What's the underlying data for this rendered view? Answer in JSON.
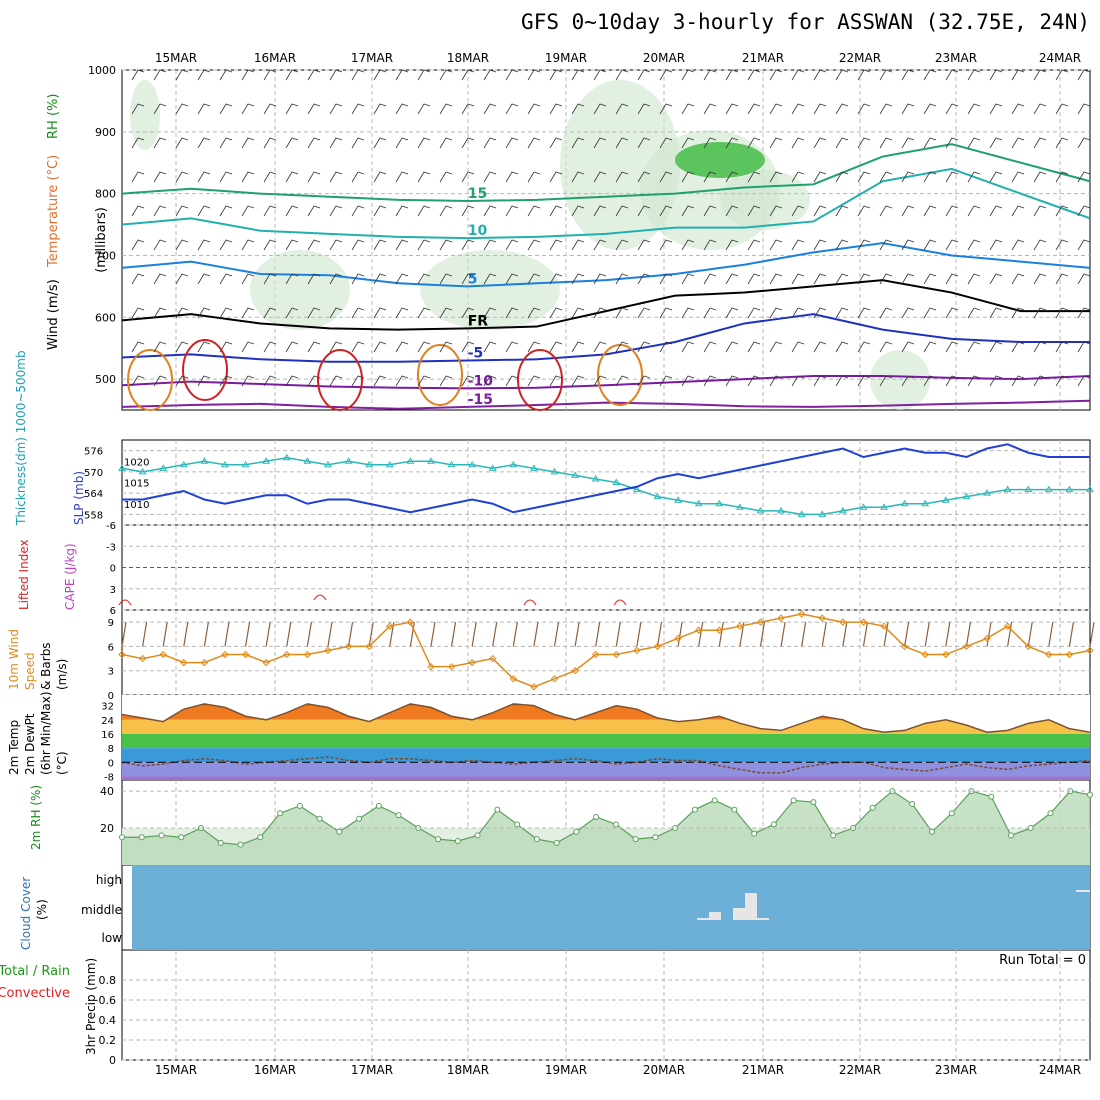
{
  "title": "GFS 0~10day 3-hourly for ASSWAN (32.75E, 24N)",
  "dates": [
    "15MAR",
    "16MAR",
    "17MAR",
    "18MAR",
    "19MAR",
    "20MAR",
    "21MAR",
    "22MAR",
    "23MAR",
    "24MAR"
  ],
  "run_total_text": "Run Total = 0",
  "colors": {
    "grid": "#b8b8b8",
    "frame": "#000",
    "slp": "#1f3fd6",
    "thickness": "#2ab7b7",
    "wind": "#e08a1a",
    "barb": "#8b6040",
    "temp": "#7a5230",
    "dewpt": "#7a4a2a",
    "rh": "#5aa05a",
    "cloud_bg": "#6baed6",
    "cloud_bar": "#e6e6e6",
    "li": "#e02020",
    "cape": "#c040c0"
  },
  "chart_data": [
    {
      "id": "profile",
      "type": "contour",
      "ylabel_parts": [
        {
          "text": "Wind (m/s)",
          "color": "#000"
        },
        {
          "text": "Temperature (°C)",
          "color": "#e07030"
        },
        {
          "text": "RH (%)",
          "color": "#1a8a1a"
        }
      ],
      "ylabel2": "(millibars)",
      "yticks": [
        500,
        600,
        700,
        800,
        900,
        1000
      ],
      "ylim": [
        450,
        1000
      ],
      "isotherms": [
        {
          "label": "-15",
          "color": "#8020a0",
          "y": [
            455,
            458,
            460,
            455,
            452,
            455,
            458,
            462,
            460,
            456,
            455,
            457,
            460,
            462,
            465
          ]
        },
        {
          "label": "-10",
          "color": "#7a1aa0",
          "y": [
            490,
            496,
            492,
            488,
            486,
            485,
            486,
            490,
            495,
            500,
            505,
            505,
            502,
            500,
            505
          ]
        },
        {
          "label": "-5",
          "color": "#2030c0",
          "y": [
            535,
            540,
            532,
            528,
            528,
            530,
            532,
            540,
            560,
            590,
            605,
            580,
            565,
            560,
            560
          ]
        },
        {
          "label": "FR",
          "color": "#000",
          "y": [
            595,
            605,
            590,
            582,
            580,
            582,
            585,
            610,
            635,
            640,
            650,
            660,
            640,
            610,
            610
          ]
        },
        {
          "label": "5",
          "color": "#1a80e0",
          "y": [
            680,
            690,
            670,
            668,
            655,
            650,
            655,
            660,
            670,
            685,
            705,
            720,
            700,
            690,
            680
          ]
        },
        {
          "label": "10",
          "color": "#20b0b0",
          "y": [
            750,
            760,
            740,
            735,
            730,
            728,
            730,
            735,
            745,
            745,
            755,
            820,
            840,
            800,
            760
          ]
        },
        {
          "label": "15",
          "color": "#20a070",
          "y": [
            800,
            808,
            800,
            795,
            790,
            788,
            790,
            795,
            800,
            810,
            815,
            860,
            880,
            850,
            820
          ]
        }
      ],
      "labels_text": [
        "-15",
        "-10",
        "-5",
        "FR",
        "5",
        "10",
        "15",
        "10",
        "5",
        "-10",
        "-5",
        "10",
        "FR"
      ]
    },
    {
      "id": "thickness_slp",
      "type": "line",
      "ylabel_left": "Thickness(dm) 1000~500mb",
      "ylabel_right": "SLP (mb)",
      "yticks_left": [
        558,
        564,
        570,
        576
      ],
      "yticks_right": [
        1010,
        1015,
        1020
      ],
      "series": [
        {
          "name": "Thickness",
          "values": [
            571,
            570,
            571,
            572,
            573,
            572,
            572,
            573,
            574,
            573,
            572,
            573,
            572,
            572,
            573,
            573,
            572,
            572,
            571,
            572,
            571,
            570,
            569,
            568,
            567,
            565,
            563,
            562,
            561,
            561,
            560,
            559,
            559,
            558,
            558,
            559,
            560,
            560,
            561,
            561,
            562,
            563,
            564,
            565,
            565,
            565,
            565,
            565
          ]
        },
        {
          "name": "SLP",
          "values": [
            1011,
            1011,
            1012,
            1013,
            1011,
            1010,
            1011,
            1012,
            1012,
            1010,
            1011,
            1011,
            1010,
            1009,
            1008,
            1009,
            1010,
            1011,
            1010,
            1008,
            1009,
            1010,
            1011,
            1012,
            1013,
            1014,
            1016,
            1017,
            1016,
            1017,
            1018,
            1019,
            1020,
            1021,
            1022,
            1023,
            1021,
            1022,
            1023,
            1022,
            1022,
            1021,
            1023,
            1024,
            1022,
            1021,
            1021,
            1021
          ]
        }
      ]
    },
    {
      "id": "li_cape",
      "type": "line",
      "ylabel_parts": [
        {
          "text": "Lifted Index",
          "color": "#e02020"
        },
        {
          "text": "CAPE (J/kg)",
          "color": "#c040c0"
        }
      ],
      "yticks": [
        "-6",
        "-3",
        "0",
        "3",
        "6"
      ],
      "ylim": [
        -6,
        6
      ],
      "series": [
        {
          "name": "Lifted Index",
          "values": [
            6,
            6,
            6,
            6,
            6,
            6,
            6,
            6,
            6,
            6,
            6,
            6,
            6,
            6,
            6,
            6,
            6,
            6,
            6,
            6,
            6,
            6,
            6,
            6,
            6,
            6,
            6,
            6,
            6,
            6,
            6,
            6,
            6,
            6,
            6,
            6,
            6,
            6,
            6,
            6,
            6,
            6,
            6,
            6,
            6,
            6,
            6,
            6
          ]
        }
      ]
    },
    {
      "id": "wind10m",
      "type": "line",
      "ylabel_parts": [
        {
          "text": "10m Wind",
          "color": "#e08a1a"
        },
        {
          "text": "Speed",
          "color": "#e08a1a"
        },
        {
          "text": "& Barbs",
          "color": "#000"
        },
        {
          "text": "(m/s)",
          "color": "#000"
        }
      ],
      "yticks": [
        0,
        3,
        6,
        9
      ],
      "ylim": [
        0,
        10.5
      ],
      "series": [
        {
          "name": "10m Wind",
          "values": [
            5,
            4.5,
            5,
            4,
            4,
            5,
            5,
            4,
            5,
            5,
            5.5,
            6,
            6,
            8.5,
            9,
            3.5,
            3.5,
            4,
            4.5,
            2,
            1,
            2,
            3,
            5,
            5,
            5.5,
            6,
            7,
            8,
            8,
            8.5,
            9,
            9.5,
            10,
            9.5,
            9,
            9,
            8.5,
            6,
            5,
            5,
            6,
            7,
            8.5,
            6,
            5,
            5,
            5.5
          ]
        }
      ]
    },
    {
      "id": "temp2m",
      "type": "area",
      "ylabel_parts": [
        {
          "text": "2m Temp",
          "color": "#000"
        },
        {
          "text": "2m DewPt",
          "color": "#000"
        },
        {
          "text": "(6hr Min/Max)",
          "color": "#000"
        },
        {
          "text": "(°C)",
          "color": "#000"
        }
      ],
      "yticks": [
        "-8",
        "0",
        "8",
        "16",
        "24",
        "32"
      ],
      "ylim": [
        -10,
        38
      ],
      "series": [
        {
          "name": "Temp",
          "values": [
            27,
            25,
            23,
            30,
            33,
            31,
            26,
            24,
            28,
            33,
            31,
            26,
            23,
            28,
            33,
            31,
            26,
            24,
            28,
            33,
            32,
            27,
            24,
            28,
            32,
            30,
            25,
            23,
            24,
            26,
            22,
            19,
            18,
            22,
            26,
            24,
            19,
            17,
            18,
            22,
            24,
            21,
            17,
            18,
            22,
            24,
            19,
            17
          ]
        },
        {
          "name": "DewPt",
          "values": [
            0,
            -2,
            -1,
            1,
            2,
            1,
            -1,
            0,
            1,
            2,
            3,
            1,
            0,
            2,
            2,
            1,
            0,
            1,
            0,
            -1,
            0,
            1,
            2,
            1,
            -1,
            0,
            2,
            1,
            1,
            -2,
            -4,
            -6,
            -6,
            -3,
            -1,
            0,
            0,
            -3,
            -4,
            -5,
            -3,
            -1,
            -3,
            -4,
            -2,
            -1,
            0,
            1
          ]
        }
      ]
    },
    {
      "id": "rh2m",
      "type": "area",
      "ylabel": "2m RH (%)",
      "yticks": [
        20,
        40
      ],
      "ylim": [
        0,
        46
      ],
      "series": [
        {
          "name": "2m RH",
          "values": [
            15,
            15,
            16,
            15,
            20,
            12,
            11,
            15,
            28,
            32,
            25,
            18,
            25,
            32,
            27,
            20,
            14,
            13,
            16,
            30,
            22,
            14,
            12,
            18,
            26,
            22,
            14,
            15,
            20,
            30,
            35,
            30,
            17,
            22,
            35,
            34,
            16,
            20,
            31,
            40,
            33,
            18,
            28,
            40,
            37,
            16,
            20,
            28,
            40,
            38
          ]
        }
      ]
    },
    {
      "id": "cloud",
      "type": "bar",
      "ylabel_parts": [
        {
          "text": "Cloud Cover",
          "color": "#3070c0"
        },
        {
          "text": "(%)",
          "color": "#000"
        }
      ],
      "yticks": [
        "high",
        "middle",
        "low"
      ],
      "series": [
        {
          "name": "middle",
          "values": [
            0,
            0,
            0,
            0,
            0,
            0,
            0,
            0,
            0,
            0,
            0,
            0,
            0,
            0,
            0,
            0,
            0,
            0,
            0,
            0,
            0,
            0,
            0,
            0,
            0,
            0,
            0,
            0,
            0,
            0,
            0,
            0,
            0,
            0,
            0,
            0,
            0,
            0,
            0,
            0,
            0,
            0,
            0,
            0,
            0,
            0,
            0,
            0
          ]
        }
      ]
    },
    {
      "id": "precip",
      "type": "bar",
      "ylabel_parts": [
        {
          "text": "Total / Rain",
          "color": "#1a9a1a"
        },
        {
          "text": "Convective",
          "color": "#e02020"
        },
        {
          "text": "3hr Precip (mm)",
          "color": "#000"
        }
      ],
      "yticks": [
        "0",
        "0.2",
        "0.4",
        "0.6",
        "0.8"
      ],
      "ylim": [
        0,
        1
      ],
      "values": []
    }
  ]
}
